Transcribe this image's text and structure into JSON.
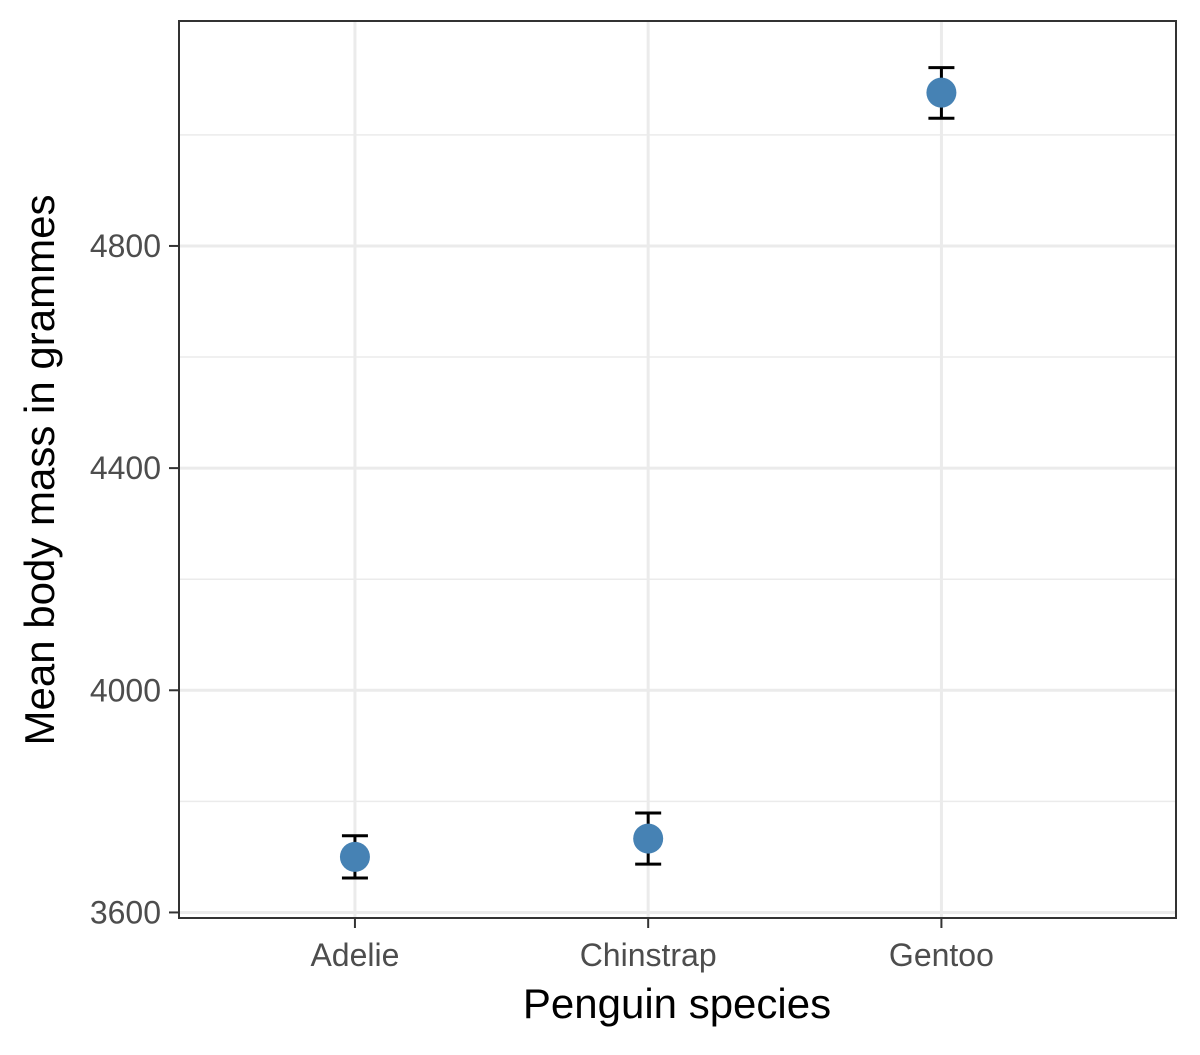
{
  "chart_data": {
    "type": "scatter",
    "categories": [
      "Adelie",
      "Chinstrap",
      "Gentoo"
    ],
    "series": [
      {
        "values": [
          3700,
          3733,
          5076
        ],
        "error_low": [
          3662,
          3687,
          5030
        ],
        "error_high": [
          3738,
          3779,
          5121
        ]
      }
    ],
    "xlabel": "Penguin species",
    "ylabel": "Mean body mass in grammes",
    "ylim": [
      3590,
      5205
    ],
    "yticks": [
      3600,
      4000,
      4400,
      4800
    ],
    "ytick_labels": [
      "3600",
      "4000",
      "4400",
      "4800"
    ],
    "grid": true,
    "point_color": "#4682b4",
    "error_bar_color": "#000000"
  }
}
